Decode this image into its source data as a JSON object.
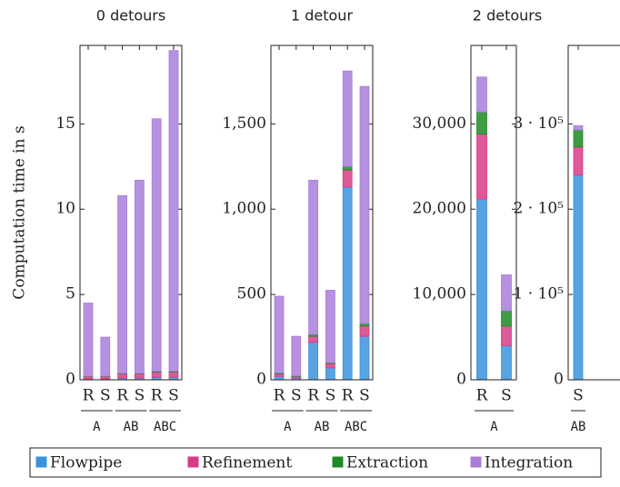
{
  "chart_data": [
    {
      "type": "bar",
      "title": "0 detours",
      "ylabel": "Computation time in s",
      "categories": [
        "R",
        "S",
        "R",
        "S",
        "R",
        "S"
      ],
      "groups": [
        "A",
        "AB",
        "ABC"
      ],
      "ylim": [
        0,
        19.6
      ],
      "yticks": [
        0,
        5,
        10,
        15
      ],
      "series": [
        {
          "name": "Flowpipe",
          "color": "#3b93dc",
          "values": [
            0.05,
            0.05,
            0.1,
            0.1,
            0.15,
            0.15
          ]
        },
        {
          "name": "Refinement",
          "color": "#d83c86",
          "values": [
            0.15,
            0.15,
            0.25,
            0.25,
            0.3,
            0.3
          ]
        },
        {
          "name": "Extraction",
          "color": "#1f8a25",
          "values": [
            0.02,
            0.02,
            0.03,
            0.03,
            0.05,
            0.05
          ]
        },
        {
          "name": "Integration",
          "color": "#a97ed9",
          "values": [
            4.28,
            2.28,
            10.42,
            11.32,
            14.8,
            18.8
          ]
        }
      ]
    },
    {
      "type": "bar",
      "title": "1 detour",
      "categories": [
        "R",
        "S",
        "R",
        "S",
        "R",
        "S"
      ],
      "groups": [
        "A",
        "AB",
        "ABC"
      ],
      "ylim": [
        0,
        1960
      ],
      "yticks": [
        0,
        500,
        {
          "value": 1000,
          "label": "1,000"
        },
        {
          "value": 1500,
          "label": "1,500"
        }
      ],
      "series": [
        {
          "name": "Flowpipe",
          "color": "#3b93dc",
          "values": [
            20,
            10,
            220,
            70,
            1130,
            255
          ]
        },
        {
          "name": "Refinement",
          "color": "#d83c86",
          "values": [
            15,
            10,
            35,
            25,
            100,
            60
          ]
        },
        {
          "name": "Extraction",
          "color": "#1f8a25",
          "values": [
            5,
            3,
            10,
            5,
            20,
            15
          ]
        },
        {
          "name": "Integration",
          "color": "#a97ed9",
          "values": [
            450,
            232,
            905,
            425,
            560,
            1390
          ]
        }
      ]
    },
    {
      "type": "bar",
      "title": "2 detours",
      "categories": [
        "R",
        "S"
      ],
      "groups": [
        "A"
      ],
      "ylim": [
        0,
        39200
      ],
      "yticks": [
        0,
        {
          "value": 10000,
          "label": "10,000"
        },
        {
          "value": 20000,
          "label": "20,000"
        },
        {
          "value": 30000,
          "label": "30,000"
        }
      ],
      "series": [
        {
          "name": "Flowpipe",
          "color": "#3b93dc",
          "values": [
            21200,
            4000
          ]
        },
        {
          "name": "Refinement",
          "color": "#d83c86",
          "values": [
            7600,
            2300
          ]
        },
        {
          "name": "Extraction",
          "color": "#1f8a25",
          "values": [
            2600,
            1800
          ]
        },
        {
          "name": "Integration",
          "color": "#a97ed9",
          "values": [
            4100,
            4200
          ]
        }
      ]
    },
    {
      "type": "bar",
      "categories": [
        "S"
      ],
      "groups": [
        "AB"
      ],
      "ylim": [
        0,
        392000
      ],
      "yticks": [
        0,
        {
          "value": 100000,
          "label": "1 · 10⁵"
        },
        {
          "value": 200000,
          "label": "2 · 10⁵"
        },
        {
          "value": 300000,
          "label": "3 · 10⁵"
        }
      ],
      "series": [
        {
          "name": "Flowpipe",
          "color": "#3b93dc",
          "values": [
            240000
          ]
        },
        {
          "name": "Refinement",
          "color": "#d83c86",
          "values": [
            33000
          ]
        },
        {
          "name": "Extraction",
          "color": "#1f8a25",
          "values": [
            20000
          ]
        },
        {
          "name": "Integration",
          "color": "#a97ed9",
          "values": [
            5000
          ]
        }
      ]
    }
  ]
}
